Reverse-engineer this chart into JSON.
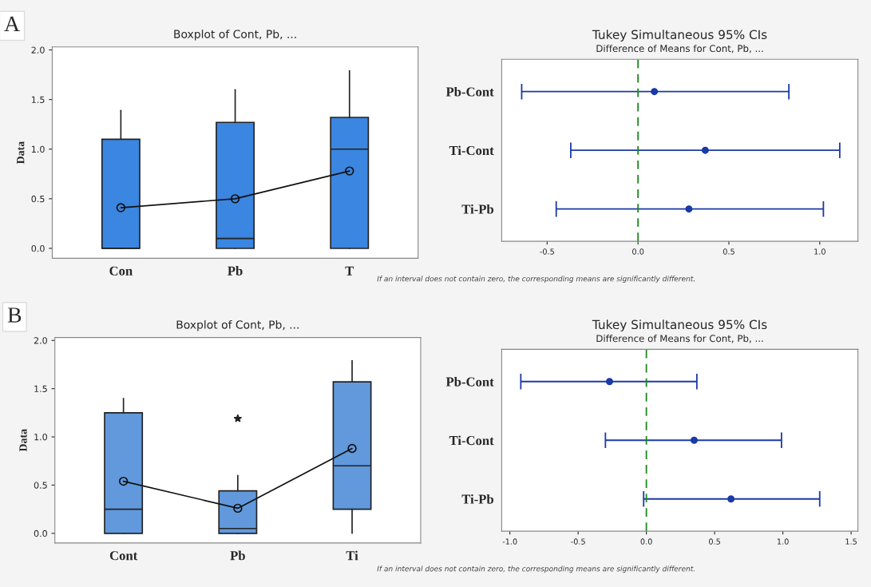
{
  "chart_data": [
    {
      "type": "box",
      "title": "Boxplot of Cont, Pb, ...",
      "ylabel": "Data",
      "annotations": [
        "A"
      ],
      "categories": [
        "Con",
        "Pb",
        "T"
      ],
      "ylim": [
        -0.1,
        2.03
      ],
      "yticks": [
        {
          "value": 0,
          "label": "0.0"
        },
        {
          "value": 0.5,
          "label": "0.5"
        },
        {
          "value": 1,
          "label": "1.0"
        },
        {
          "value": 1.5,
          "label": "1.5"
        },
        {
          "value": 2,
          "label": "2.0"
        }
      ],
      "grid": false,
      "legend": false,
      "series": [
        {
          "type": "box",
          "color": "#3a86e0",
          "boxes": [
            {
              "low": 0,
              "q1": 0,
              "median": 0,
              "q3": 1.1,
              "high": 1.39
            },
            {
              "low": 0,
              "q1": 0,
              "median": 0.1,
              "q3": 1.27,
              "high": 1.6
            },
            {
              "low": 0,
              "q1": 0,
              "median": 1.0,
              "q3": 1.32,
              "high": 1.79
            }
          ]
        },
        {
          "type": "line",
          "color": "#111111",
          "marker": "circle",
          "values": [
            0.41,
            0.5,
            0.78
          ]
        }
      ]
    },
    {
      "type": "scatter",
      "orientation": "horizontal",
      "title": "Tukey Simultaneous 95% CIs",
      "subtitle": "Difference of Means for Cont, Pb, ...",
      "annotations": [
        "If an interval does not contain zero, the corresponding means are significantly different."
      ],
      "categories": [
        "Pb-Cont",
        "Ti-Cont",
        "Ti-Pb"
      ],
      "xlim": [
        -0.75,
        1.21
      ],
      "xticks": [
        -0.5,
        {
          "value": 0,
          "label": "0.0"
        },
        0.5,
        {
          "value": 1,
          "label": "1.0"
        }
      ],
      "grid": false,
      "legend": false,
      "ref_lines": [
        {
          "axis": "x",
          "value": 0,
          "label": null,
          "color": "#1a8a1a",
          "line_style": "dashed"
        }
      ],
      "series": [
        {
          "color": "#1a3aa8",
          "marker": "circle",
          "values": [
            0.09,
            0.37,
            0.28
          ],
          "errors": [
            [
              -0.64,
              0.83
            ],
            [
              -0.37,
              1.11
            ],
            [
              -0.45,
              1.02
            ]
          ]
        }
      ]
    },
    {
      "type": "box",
      "title": "Boxplot of Cont, Pb, ...",
      "ylabel": "Data",
      "annotations": [
        "B"
      ],
      "categories": [
        "Cont",
        "Pb",
        "Ti"
      ],
      "ylim": [
        -0.1,
        2.03
      ],
      "yticks": [
        {
          "value": 0,
          "label": "0.0"
        },
        {
          "value": 0.5,
          "label": "0.5"
        },
        {
          "value": 1,
          "label": "1.0"
        },
        {
          "value": 1.5,
          "label": "1.5"
        },
        {
          "value": 2,
          "label": "2.0"
        }
      ],
      "grid": false,
      "legend": false,
      "series": [
        {
          "type": "box",
          "color": "#6199dc",
          "boxes": [
            {
              "low": 0,
              "q1": 0,
              "median": 0.25,
              "q3": 1.25,
              "high": 1.4
            },
            {
              "low": 0,
              "q1": 0,
              "median": 0.05,
              "q3": 0.44,
              "high": 0.6,
              "outliers": [
                1.19
              ]
            },
            {
              "low": 0,
              "q1": 0.25,
              "median": 0.7,
              "q3": 1.57,
              "high": 1.79
            }
          ]
        },
        {
          "type": "line",
          "color": "#111111",
          "marker": "circle",
          "values": [
            0.54,
            0.26,
            0.88
          ]
        }
      ]
    },
    {
      "type": "scatter",
      "orientation": "horizontal",
      "title": "Tukey Simultaneous 95% CIs",
      "subtitle": "Difference of Means for Cont, Pb, ...",
      "annotations": [
        "If an interval does not contain zero, the corresponding means are significantly different."
      ],
      "categories": [
        "Pb-Cont",
        "Ti-Cont",
        "Ti-Pb"
      ],
      "xlim": [
        -1.06,
        1.55
      ],
      "xticks": [
        {
          "value": -1,
          "label": "-1.0"
        },
        -0.5,
        {
          "value": 0,
          "label": "0.0"
        },
        0.5,
        {
          "value": 1,
          "label": "1.0"
        },
        1.5
      ],
      "grid": false,
      "legend": false,
      "ref_lines": [
        {
          "axis": "x",
          "value": 0,
          "label": null,
          "color": "#1a8a1a",
          "line_style": "dashed"
        }
      ],
      "series": [
        {
          "color": "#1a3aa8",
          "marker": "circle",
          "values": [
            -0.27,
            0.35,
            0.62
          ],
          "errors": [
            [
              -0.92,
              0.37
            ],
            [
              -0.3,
              0.99
            ],
            [
              -0.02,
              1.27
            ]
          ]
        }
      ]
    }
  ]
}
